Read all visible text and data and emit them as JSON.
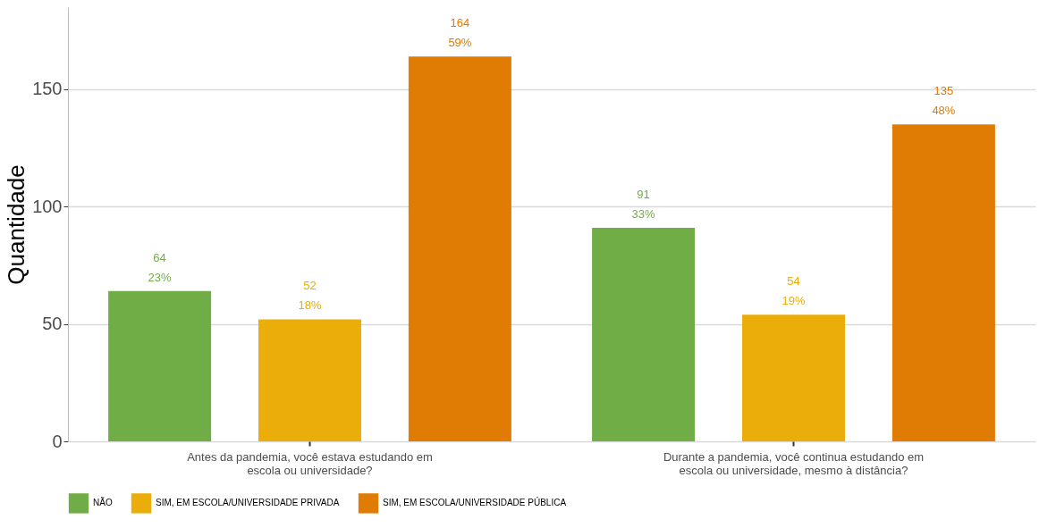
{
  "chart_data": {
    "type": "bar",
    "ylabel": "Quantidade",
    "categories": [
      "Antes da pandemia, você estava estudando em escola ou universidade?",
      "Durante a pandemia, você continua estudando em escola ou universidade, mesmo à distância?"
    ],
    "series": [
      {
        "name": "NÃO",
        "color": "#70ad47",
        "values": [
          64,
          91
        ],
        "value_labels": [
          "64\n23%",
          "91\n33%"
        ]
      },
      {
        "name": "SIM, EM ESCOLA/UNIVERSIDADE PRIVADA",
        "color": "#ebad0a",
        "values": [
          52,
          54
        ],
        "value_labels": [
          "52\n18%",
          "54\n19%"
        ]
      },
      {
        "name": "SIM, EM ESCOLA/UNIVERSIDADE PÚBLICA",
        "color": "#e07b04",
        "values": [
          164,
          135
        ],
        "value_labels": [
          "164\n59%",
          "135\n48%"
        ]
      }
    ],
    "ylim": [
      0,
      185
    ],
    "yticks": [
      0,
      50,
      100,
      150
    ],
    "grid": "y",
    "legend": "bottom"
  }
}
